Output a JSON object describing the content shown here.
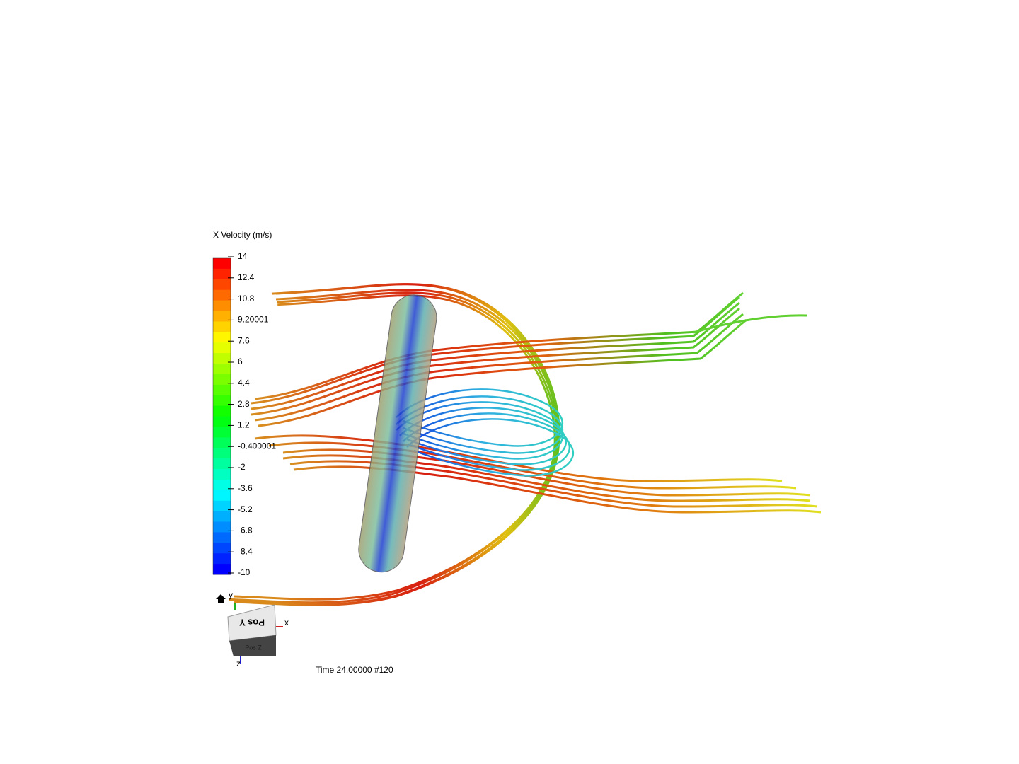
{
  "legend": {
    "title": "X Velocity (m/s)",
    "labels": [
      "14",
      "12.4",
      "10.8",
      "9.20001",
      "7.6",
      "6",
      "4.4",
      "2.8",
      "1.2",
      "-0.400001",
      "-2",
      "-3.6",
      "-5.2",
      "-6.8",
      "-8.4",
      "-10"
    ]
  },
  "axes": {
    "y": "y",
    "x": "x",
    "z": "z"
  },
  "cube": {
    "top": "Pos Y",
    "front": "Pos Z"
  },
  "status": "Time 24.00000  #120"
}
